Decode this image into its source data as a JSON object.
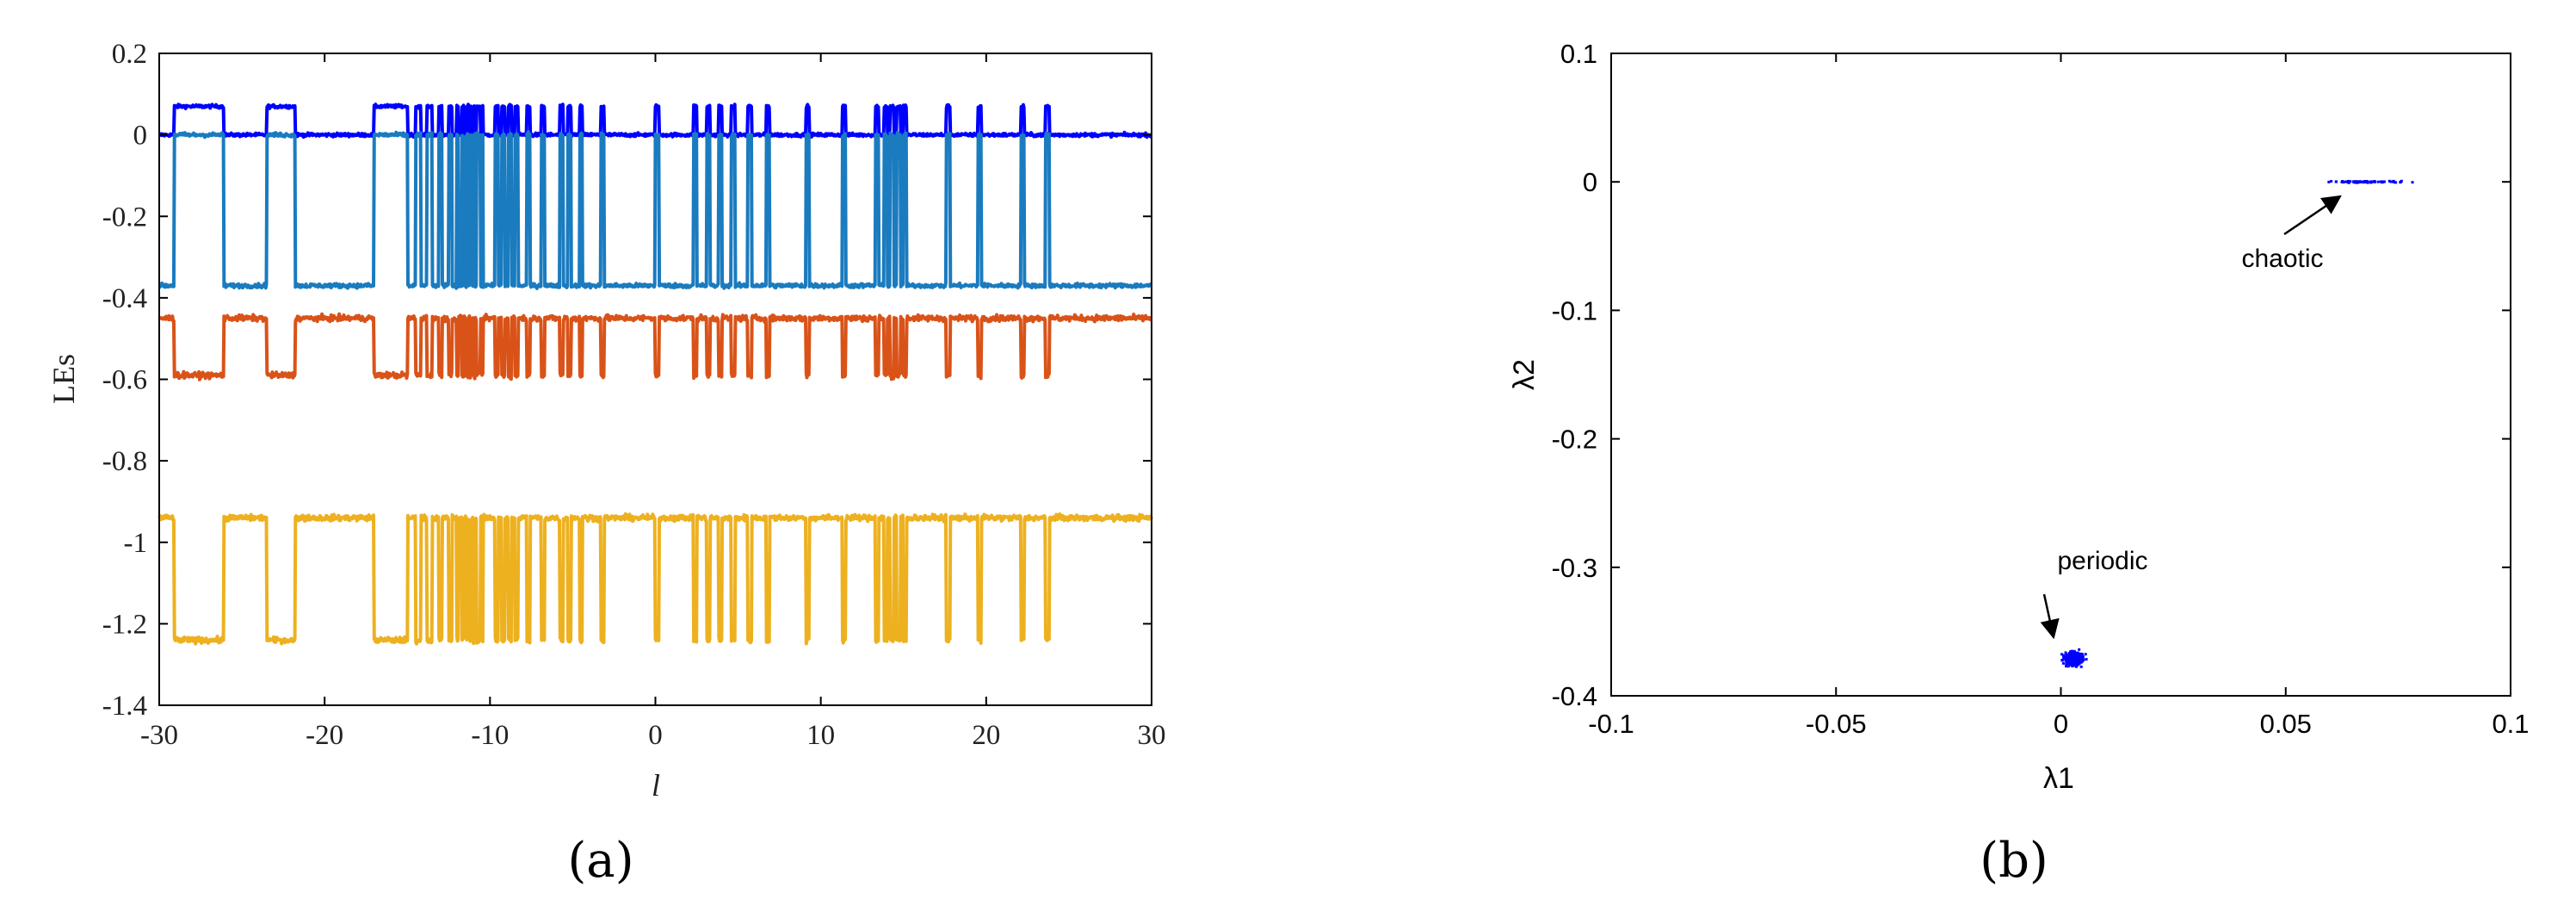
{
  "colors": {
    "blue": "#0000ff",
    "light_blue": "#1a7bbf",
    "orange": "#d95319",
    "yellow": "#edb120",
    "dot_blue": "#0000ff",
    "axis": "#000000"
  },
  "panel_a_label": "(a)",
  "panel_b_label": "(b)",
  "chart_data": [
    {
      "type": "line",
      "title": "",
      "xlabel": "l",
      "ylabel": "LEs",
      "xlim": [
        -30,
        30
      ],
      "ylim": [
        -1.4,
        0.2
      ],
      "xticks": [
        -30,
        -20,
        -10,
        0,
        10,
        20,
        30
      ],
      "xtick_labels": [
        "-30",
        "-20",
        "-10",
        "0",
        "10",
        "20",
        "30"
      ],
      "yticks": [
        0.2,
        0,
        -0.2,
        -0.4,
        -0.6,
        -0.8,
        -1,
        -1.2,
        -1.4
      ],
      "ytick_labels": [
        "0.2",
        "0",
        "-0.2",
        "-0.4",
        "-0.6",
        "-0.8",
        "-1",
        "-1.2",
        "-1.4"
      ],
      "grid": false,
      "chaotic_intervals": [
        [
          -29.1,
          -26.1
        ],
        [
          -23.5,
          -21.8
        ],
        [
          -17.0,
          -15.0
        ],
        [
          -14.5,
          -14.2
        ],
        [
          -13.8,
          -13.5
        ],
        [
          -13.1,
          -12.9
        ],
        [
          -12.5,
          -12.3
        ],
        [
          -12.0,
          -11.9
        ],
        [
          -11.7,
          -11.6
        ],
        [
          -11.4,
          -11.3
        ],
        [
          -11.2,
          -11.1
        ],
        [
          -11.0,
          -10.9
        ],
        [
          -10.8,
          -10.6
        ],
        [
          -10.5,
          -10.4
        ],
        [
          -9.7,
          -9.5
        ],
        [
          -9.3,
          -9.1
        ],
        [
          -8.9,
          -8.7
        ],
        [
          -8.5,
          -8.3
        ],
        [
          -7.8,
          -7.6
        ],
        [
          -6.9,
          -6.7
        ],
        [
          -5.8,
          -5.6
        ],
        [
          -5.3,
          -5.1
        ],
        [
          -4.6,
          -4.4
        ],
        [
          -3.3,
          -3.1
        ],
        [
          0.0,
          0.2
        ],
        [
          2.3,
          2.5
        ],
        [
          3.1,
          3.3
        ],
        [
          3.8,
          4.0
        ],
        [
          4.6,
          4.8
        ],
        [
          5.6,
          5.8
        ],
        [
          6.7,
          6.9
        ],
        [
          9.1,
          9.3
        ],
        [
          11.3,
          11.5
        ],
        [
          13.3,
          13.5
        ],
        [
          13.8,
          14.0
        ],
        [
          14.2,
          14.4
        ],
        [
          14.6,
          14.8
        ],
        [
          15.0,
          15.2
        ],
        [
          17.6,
          17.8
        ],
        [
          19.5,
          19.7
        ],
        [
          22.1,
          22.3
        ],
        [
          23.6,
          23.8
        ]
      ],
      "series": [
        {
          "color_key": "blue",
          "regular_value": 0.0,
          "chaotic_value": 0.07,
          "noise": 0.004
        },
        {
          "color_key": "light_blue",
          "regular_value": -0.37,
          "chaotic_value": 0.0,
          "noise": 0.005
        },
        {
          "color_key": "orange",
          "regular_value": -0.45,
          "chaotic_value": -0.59,
          "noise": 0.007
        },
        {
          "color_key": "yellow",
          "regular_value": -0.94,
          "chaotic_value": -1.24,
          "noise": 0.007
        }
      ]
    },
    {
      "type": "scatter",
      "title": "",
      "xlabel": "λ1",
      "ylabel": "λ2",
      "xlim": [
        -0.1,
        0.1
      ],
      "ylim": [
        -0.4,
        0.1
      ],
      "xticks": [
        -0.1,
        -0.05,
        0,
        0.05,
        0.1
      ],
      "xtick_labels": [
        "-0.1",
        "-0.05",
        "0",
        "0.05",
        "0.1"
      ],
      "yticks": [
        0.1,
        0,
        -0.1,
        -0.2,
        -0.3,
        -0.4
      ],
      "ytick_labels": [
        "0.1",
        "0",
        "-0.1",
        "-0.2",
        "-0.3",
        "-0.4"
      ],
      "grid": false,
      "clusters": [
        {
          "name": "chaotic",
          "center": [
            0.068,
            0.0
          ],
          "spread": [
            0.0085,
            0.0006
          ],
          "count": 70
        },
        {
          "name": "periodic",
          "center": [
            0.003,
            -0.371
          ],
          "spread": [
            0.0022,
            0.0055
          ],
          "count": 260
        }
      ],
      "annotations": [
        {
          "text": "chaotic",
          "arrow_to": [
            0.062,
            -0.007
          ]
        },
        {
          "text": "periodic",
          "arrow_to": [
            0.001,
            -0.352
          ]
        }
      ]
    }
  ]
}
